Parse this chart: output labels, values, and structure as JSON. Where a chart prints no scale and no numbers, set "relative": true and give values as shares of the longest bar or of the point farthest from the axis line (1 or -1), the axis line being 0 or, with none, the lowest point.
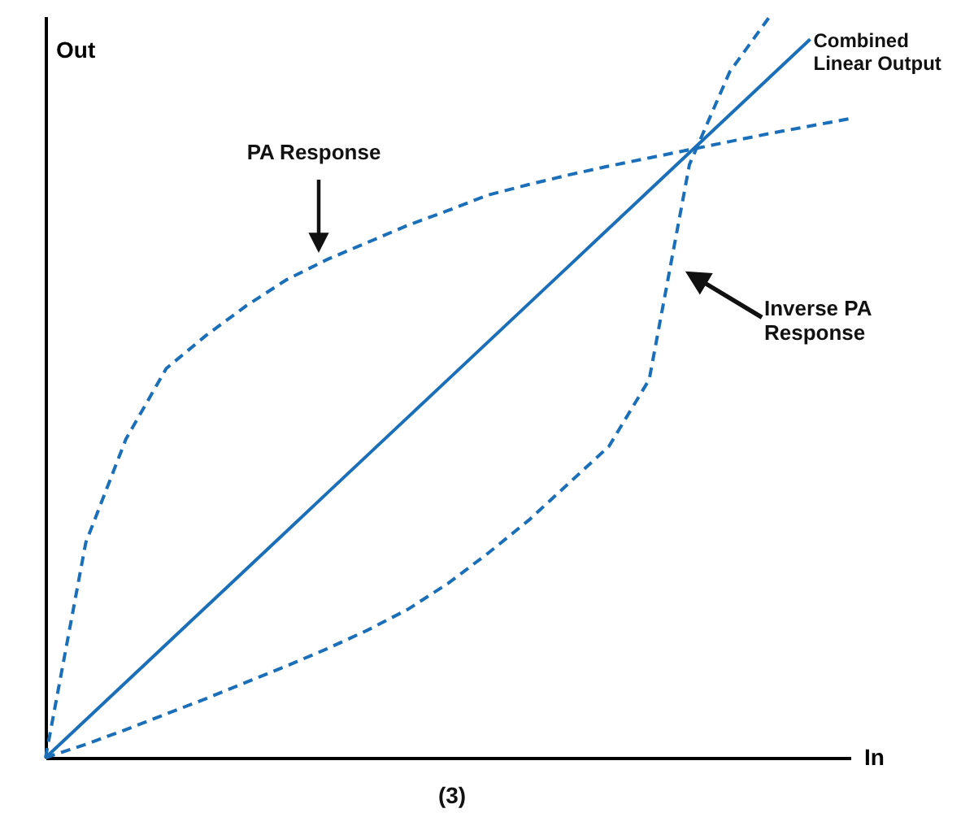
{
  "chart_data": {
    "type": "line",
    "relative": true,
    "xlabel": "In",
    "ylabel": "Out",
    "categories": [
      null,
      null,
      null,
      null,
      null,
      null,
      null,
      null,
      null,
      null,
      null,
      null,
      null,
      null,
      null,
      null,
      null,
      null,
      null,
      null,
      null
    ],
    "series": [
      {
        "name": "Combined Linear Output",
        "color": "#1b6fb8",
        "line_style": "solid",
        "values": [
          0,
          0.051,
          0.102,
          0.153,
          0.204,
          0.255,
          0.306,
          0.357,
          0.408,
          0.459,
          0.51,
          0.561,
          0.612,
          0.663,
          0.714,
          0.765,
          0.816,
          0.867,
          0.918,
          0.969,
          null
        ]
      },
      {
        "color": "#1b6fb8",
        "line_style": "dashed",
        "values": [
          0,
          0.29,
          0.43,
          0.525,
          0.57,
          0.61,
          0.645,
          0.672,
          0.695,
          0.718,
          0.738,
          0.759,
          0.773,
          0.786,
          0.798,
          0.809,
          0.82,
          0.831,
          0.842,
          0.852,
          0.862
        ]
      },
      {
        "color": "#1b6fb8",
        "line_style": "dashed",
        "values": [
          0,
          0.018,
          0.038,
          0.059,
          0.08,
          0.102,
          0.124,
          0.147,
          0.172,
          0.2,
          0.235,
          0.276,
          0.32,
          0.37,
          0.42,
          0.51,
          0.8,
          0.925,
          1,
          null,
          null
        ]
      }
    ],
    "annotations": [
      "PA Response",
      "Inverse PA\nResponse",
      "(3)"
    ]
  }
}
